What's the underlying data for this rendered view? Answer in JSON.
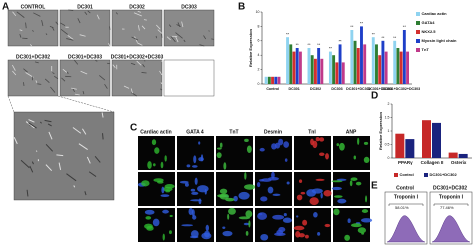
{
  "figure": {
    "panel_letters": [
      "A",
      "B",
      "C",
      "D",
      "E"
    ],
    "a_labels": [
      "CONTROL",
      "DC301",
      "DC302",
      "DC303",
      "DC301+DC302",
      "DC301+DC303",
      "DC301+DC302+DC303"
    ],
    "c_labels": [
      "Cardiac actin",
      "GATA 4",
      "TnT",
      "Desmin",
      "TnI",
      "ANP"
    ],
    "e_labels": {
      "conditions": [
        "Control",
        "DC301+DC302"
      ],
      "marker": "Troponin I",
      "percents": [
        "58.01%",
        "77.46%"
      ]
    }
  },
  "chart_data": [
    {
      "type": "bar",
      "ylabel": "Relative Expression",
      "categories": [
        "Control",
        "DC301",
        "DC302",
        "DC303",
        "DC301+DC302",
        "DC301+DC303",
        "DC301+DC302+DC303"
      ],
      "ylim": [
        0,
        10
      ],
      "yticks": [
        0,
        2,
        4,
        6,
        8,
        10
      ],
      "series": [
        {
          "name": "Cardiac actin",
          "color": "#8fd3f0",
          "values": [
            1,
            6.5,
            5,
            4.5,
            7.5,
            6.5,
            6
          ],
          "significance": [
            null,
            "**",
            "**",
            "**",
            "**",
            "**",
            "**"
          ]
        },
        {
          "name": "GATA4",
          "color": "#2e7d32",
          "values": [
            1,
            5.5,
            4,
            4,
            6,
            5.5,
            5
          ]
        },
        {
          "name": "NKX2.5",
          "color": "#d32f2f",
          "values": [
            1,
            4.5,
            3.5,
            3,
            5,
            4,
            4.5
          ]
        },
        {
          "name": "Myosin light chain",
          "color": "#1e3fc8",
          "values": [
            1,
            5,
            5,
            5.5,
            8,
            6,
            7.5
          ],
          "significance": [
            null,
            "**",
            "**",
            "**",
            "**",
            "**",
            "**"
          ]
        },
        {
          "name": "TnT",
          "color": "#c03a8a",
          "values": [
            1,
            4.5,
            3.5,
            3,
            5.5,
            4.5,
            4.5
          ]
        }
      ]
    },
    {
      "type": "bar",
      "ylabel": "Relative Expression",
      "categories": [
        "PPARγ",
        "Collagen II",
        "Osterix"
      ],
      "ylim": [
        0,
        2
      ],
      "yticks": [
        0,
        0.5,
        1,
        1.5,
        2
      ],
      "series": [
        {
          "name": "Control",
          "color": "#c62828",
          "values": [
            0.9,
            1.4,
            0.2
          ]
        },
        {
          "name": "DC301+DC302",
          "color": "#1a237e",
          "values": [
            0.7,
            1.3,
            0.15
          ]
        }
      ]
    }
  ]
}
